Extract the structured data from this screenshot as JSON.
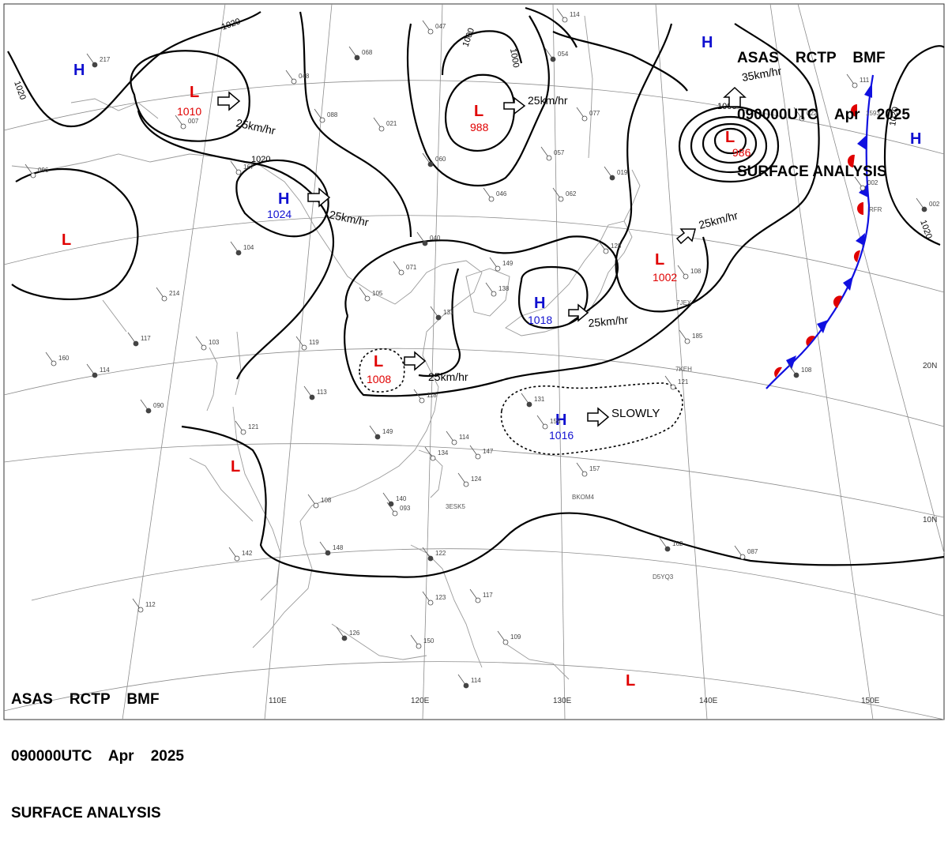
{
  "header": {
    "line1": "ASAS    RCTP    BMF",
    "line2": "090000UTC    Apr    2025",
    "line3": "SURFACE ANALYSIS"
  },
  "colors": {
    "high": "#1010d0",
    "low": "#e00000",
    "isobar": "#000000",
    "grid": "#888888",
    "coast": "#999999",
    "cold_front": "#1010e0",
    "warm_front": "#e00000"
  },
  "longitude_labels": [
    "110E",
    "120E",
    "130E",
    "140E",
    "150E"
  ],
  "latitude_labels": [
    "20N",
    "10N"
  ],
  "pressure_centers": [
    {
      "type": "H",
      "value": ""
    },
    {
      "type": "L",
      "value": "1010"
    },
    {
      "type": "H",
      "value": "1024"
    },
    {
      "type": "L",
      "value": "988"
    },
    {
      "type": "L",
      "value": "986"
    },
    {
      "type": "H",
      "value": ""
    },
    {
      "type": "H",
      "value": ""
    },
    {
      "type": "L",
      "value": ""
    },
    {
      "type": "L",
      "value": "1002"
    },
    {
      "type": "H",
      "value": "1018"
    },
    {
      "type": "L",
      "value": "1008"
    },
    {
      "type": "H",
      "value": "1016"
    },
    {
      "type": "L",
      "value": ""
    },
    {
      "type": "L",
      "value": ""
    }
  ],
  "isobar_labels": [
    "1020",
    "1020",
    "1020",
    "1000",
    "1000",
    "1000",
    "1020",
    "1020"
  ],
  "motions": [
    "25km/hr",
    "25km/hr",
    "25km/hr",
    "35km/hr",
    "25km/hr",
    "25km/hr",
    "25km/hr",
    "SLOWLY"
  ],
  "station_numbers": [
    "217",
    "096",
    "167",
    "114",
    "048",
    "088",
    "068",
    "021",
    "047",
    "060",
    "114",
    "007",
    "054",
    "077",
    "057",
    "019",
    "062",
    "046",
    "040",
    "071",
    "105",
    "104",
    "214",
    "160",
    "117",
    "103",
    "119",
    "113",
    "118",
    "121",
    "090",
    "114",
    "147",
    "149",
    "134",
    "124",
    "148",
    "142",
    "112",
    "126",
    "150",
    "123",
    "114",
    "109",
    "117",
    "122",
    "087",
    "108",
    "140",
    "149",
    "138",
    "131",
    "128",
    "108",
    "131",
    "156",
    "157",
    "162",
    "185",
    "121",
    "108",
    "111",
    "002",
    "002",
    "022",
    "093"
  ],
  "ship_ids": [
    "3ESK5",
    "BKOM4",
    "D5YQ3",
    "7JEX",
    "7KEH",
    "1593",
    "RFR"
  ]
}
